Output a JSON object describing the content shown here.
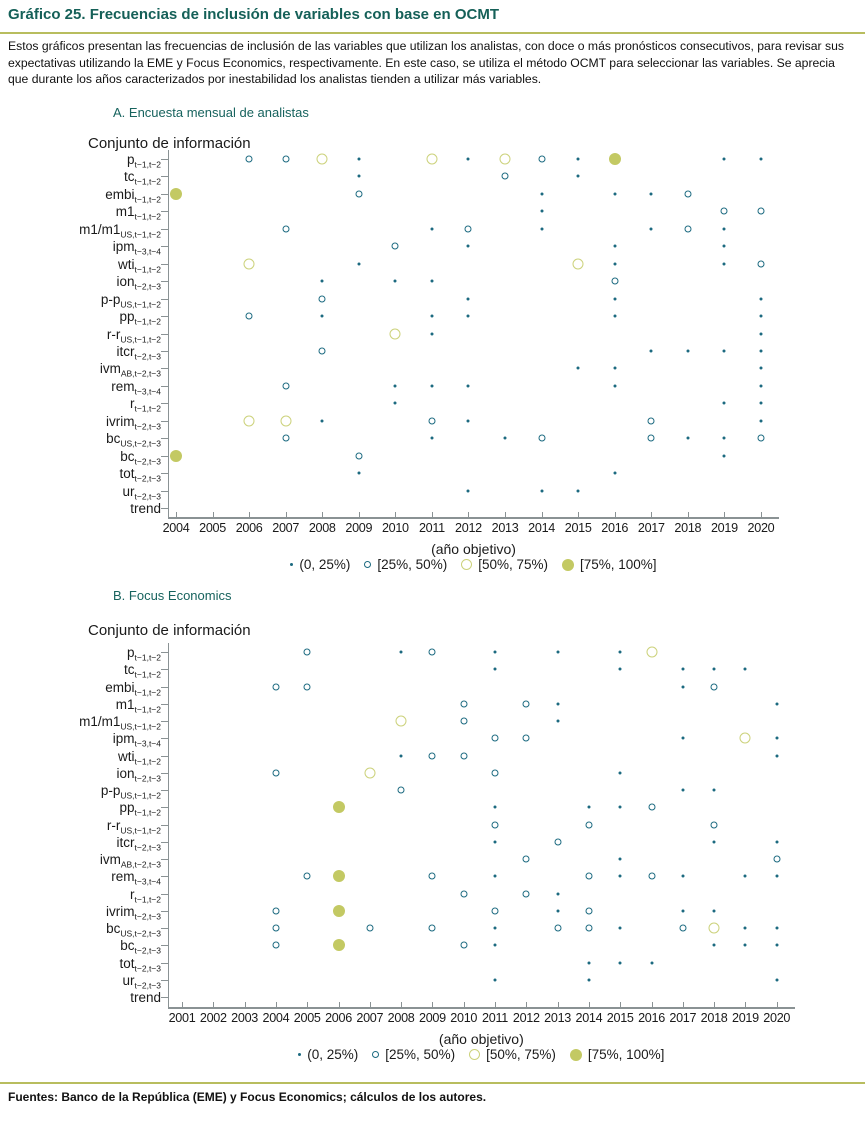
{
  "page": {
    "title": "Gráfico 25. Frecuencias de inclusión de variables con base en OCMT",
    "intro": "Estos gráficos presentan las frecuencias de inclusión de las variables que utilizan los analistas, con doce o más pronósticos consecutivos, para revisar sus expectativas utilizando la EME y Focus Economics, respectivamente. En este caso, se utiliza el método OCMT para seleccionar las variables. Se aprecia que durante los años caracterizados por inestabilidad los analistas tienden a utilizar más variables.",
    "footer": "Fuentes: Banco de la República (EME) y Focus Economics; cálculos de los autores."
  },
  "colors": {
    "title_teal": "#156058",
    "panel_teal": "#17635e",
    "olive_rule": "#b8bd5e",
    "marker_teal": "#1c6a80",
    "marker_olive_open": "#ccd27b",
    "marker_olive_fill": "#c3c963",
    "axis_gray": "#8a9294"
  },
  "legend": {
    "items": [
      {
        "bin": 1,
        "label": "(0, 25%)"
      },
      {
        "bin": 2,
        "label": "[25%, 50%)"
      },
      {
        "bin": 3,
        "label": "[50%, 75%)"
      },
      {
        "bin": 4,
        "label": "[75%, 100%]"
      }
    ]
  },
  "chart_data": [
    {
      "type": "scatter",
      "panel_title": "A. Encuesta mensual de analistas",
      "ylabel": "Conjunto de información",
      "xlabel": "(año objetivo)",
      "legend_position": "bottom-center",
      "grid": false,
      "bins": [
        "(0, 25%)",
        "[25%, 50%)",
        "[50%, 75%)",
        "[75%, 100%]"
      ],
      "years": [
        2004,
        2005,
        2006,
        2007,
        2008,
        2009,
        2010,
        2011,
        2012,
        2013,
        2014,
        2015,
        2016,
        2017,
        2018,
        2019,
        2020
      ],
      "variables": [
        {
          "base": "p",
          "sub": "t−1,t−2",
          "points": [
            [
              2006,
              2
            ],
            [
              2007,
              2
            ],
            [
              2008,
              3
            ],
            [
              2009,
              1
            ],
            [
              2011,
              3
            ],
            [
              2012,
              1
            ],
            [
              2013,
              3
            ],
            [
              2014,
              2
            ],
            [
              2015,
              1
            ],
            [
              2016,
              4
            ],
            [
              2019,
              1
            ],
            [
              2020,
              1
            ]
          ]
        },
        {
          "base": "tc",
          "sub": "t−1,t−2",
          "points": [
            [
              2009,
              1
            ],
            [
              2013,
              2
            ],
            [
              2015,
              1
            ]
          ]
        },
        {
          "base": "embi",
          "sub": "t−1,t−2",
          "points": [
            [
              2004,
              4
            ],
            [
              2009,
              2
            ],
            [
              2014,
              1
            ],
            [
              2016,
              1
            ],
            [
              2017,
              1
            ],
            [
              2018,
              2
            ]
          ]
        },
        {
          "base": "m1",
          "sub": "t−1,t−2",
          "points": [
            [
              2014,
              1
            ],
            [
              2019,
              2
            ],
            [
              2020,
              2
            ]
          ]
        },
        {
          "base": "m1/m1",
          "sub": "US,t−1,t−2",
          "points": [
            [
              2007,
              2
            ],
            [
              2011,
              1
            ],
            [
              2012,
              2
            ],
            [
              2014,
              1
            ],
            [
              2017,
              1
            ],
            [
              2018,
              2
            ],
            [
              2019,
              1
            ]
          ]
        },
        {
          "base": "ipm",
          "sub": "t−3,t−4",
          "points": [
            [
              2010,
              2
            ],
            [
              2012,
              1
            ],
            [
              2016,
              1
            ],
            [
              2019,
              1
            ]
          ]
        },
        {
          "base": "wti",
          "sub": "t−1,t−2",
          "points": [
            [
              2006,
              3
            ],
            [
              2009,
              1
            ],
            [
              2015,
              3
            ],
            [
              2016,
              1
            ],
            [
              2019,
              1
            ],
            [
              2020,
              2
            ]
          ]
        },
        {
          "base": "ion",
          "sub": "t−2,t−3",
          "points": [
            [
              2008,
              1
            ],
            [
              2010,
              1
            ],
            [
              2011,
              1
            ],
            [
              2016,
              2
            ]
          ]
        },
        {
          "base": "p-p",
          "sub": "US,t−1,t−2",
          "points": [
            [
              2008,
              2
            ],
            [
              2012,
              1
            ],
            [
              2016,
              1
            ],
            [
              2020,
              1
            ]
          ]
        },
        {
          "base": "pp",
          "sub": "t−1,t−2",
          "points": [
            [
              2006,
              2
            ],
            [
              2008,
              1
            ],
            [
              2011,
              1
            ],
            [
              2012,
              1
            ],
            [
              2016,
              1
            ],
            [
              2020,
              1
            ]
          ]
        },
        {
          "base": "r-r",
          "sub": "US,t−1,t−2",
          "points": [
            [
              2010,
              3
            ],
            [
              2011,
              1
            ],
            [
              2020,
              1
            ]
          ]
        },
        {
          "base": "itcr",
          "sub": "t−2,t−3",
          "points": [
            [
              2008,
              2
            ],
            [
              2017,
              1
            ],
            [
              2018,
              1
            ],
            [
              2019,
              1
            ],
            [
              2020,
              1
            ]
          ]
        },
        {
          "base": "ivm",
          "sub": "AB,t−2,t−3",
          "points": [
            [
              2015,
              1
            ],
            [
              2016,
              1
            ],
            [
              2020,
              1
            ]
          ]
        },
        {
          "base": "rem",
          "sub": "t−3,t−4",
          "points": [
            [
              2007,
              2
            ],
            [
              2010,
              1
            ],
            [
              2011,
              1
            ],
            [
              2012,
              1
            ],
            [
              2016,
              1
            ],
            [
              2020,
              1
            ]
          ]
        },
        {
          "base": "r",
          "sub": "t−1,t−2",
          "points": [
            [
              2010,
              1
            ],
            [
              2019,
              1
            ],
            [
              2020,
              1
            ]
          ]
        },
        {
          "base": "ivrim",
          "sub": "t−2,t−3",
          "points": [
            [
              2006,
              3
            ],
            [
              2007,
              3
            ],
            [
              2008,
              1
            ],
            [
              2011,
              2
            ],
            [
              2012,
              1
            ],
            [
              2017,
              2
            ],
            [
              2020,
              1
            ]
          ]
        },
        {
          "base": "bc",
          "sub": "US,t−2,t−3",
          "points": [
            [
              2007,
              2
            ],
            [
              2011,
              1
            ],
            [
              2013,
              1
            ],
            [
              2014,
              2
            ],
            [
              2017,
              2
            ],
            [
              2018,
              1
            ],
            [
              2019,
              1
            ],
            [
              2020,
              2
            ]
          ]
        },
        {
          "base": "bc",
          "sub": "t−2,t−3",
          "points": [
            [
              2004,
              4
            ],
            [
              2009,
              2
            ],
            [
              2019,
              1
            ]
          ]
        },
        {
          "base": "tot",
          "sub": "t−2,t−3",
          "points": [
            [
              2009,
              1
            ],
            [
              2016,
              1
            ]
          ]
        },
        {
          "base": "ur",
          "sub": "t−2,t−3",
          "points": [
            [
              2012,
              1
            ],
            [
              2014,
              1
            ],
            [
              2015,
              1
            ]
          ]
        },
        {
          "base": "trend",
          "sub": "",
          "points": []
        }
      ]
    },
    {
      "type": "scatter",
      "panel_title": "B. Focus Economics",
      "ylabel": "Conjunto de información",
      "xlabel": "(año objetivo)",
      "legend_position": "bottom-center",
      "grid": false,
      "bins": [
        "(0, 25%)",
        "[25%, 50%)",
        "[50%, 75%)",
        "[75%, 100%]"
      ],
      "years": [
        2001,
        2002,
        2003,
        2004,
        2005,
        2006,
        2007,
        2008,
        2009,
        2010,
        2011,
        2012,
        2013,
        2014,
        2015,
        2016,
        2017,
        2018,
        2019,
        2020
      ],
      "variables": [
        {
          "base": "p",
          "sub": "t−1,t−2",
          "points": [
            [
              2005,
              2
            ],
            [
              2008,
              1
            ],
            [
              2009,
              2
            ],
            [
              2011,
              1
            ],
            [
              2013,
              1
            ],
            [
              2015,
              1
            ],
            [
              2016,
              3
            ]
          ]
        },
        {
          "base": "tc",
          "sub": "t−1,t−2",
          "points": [
            [
              2011,
              1
            ],
            [
              2015,
              1
            ],
            [
              2017,
              1
            ],
            [
              2018,
              1
            ],
            [
              2019,
              1
            ]
          ]
        },
        {
          "base": "embi",
          "sub": "t−1,t−2",
          "points": [
            [
              2004,
              2
            ],
            [
              2005,
              2
            ],
            [
              2017,
              1
            ],
            [
              2018,
              2
            ]
          ]
        },
        {
          "base": "m1",
          "sub": "t−1,t−2",
          "points": [
            [
              2010,
              2
            ],
            [
              2012,
              2
            ],
            [
              2013,
              1
            ],
            [
              2020,
              1
            ]
          ]
        },
        {
          "base": "m1/m1",
          "sub": "US,t−1,t−2",
          "points": [
            [
              2008,
              3
            ],
            [
              2010,
              2
            ],
            [
              2013,
              1
            ]
          ]
        },
        {
          "base": "ipm",
          "sub": "t−3,t−4",
          "points": [
            [
              2011,
              2
            ],
            [
              2012,
              2
            ],
            [
              2017,
              1
            ],
            [
              2019,
              3
            ],
            [
              2020,
              1
            ]
          ]
        },
        {
          "base": "wti",
          "sub": "t−1,t−2",
          "points": [
            [
              2008,
              1
            ],
            [
              2009,
              2
            ],
            [
              2010,
              2
            ],
            [
              2020,
              1
            ]
          ]
        },
        {
          "base": "ion",
          "sub": "t−2,t−3",
          "points": [
            [
              2004,
              2
            ],
            [
              2007,
              3
            ],
            [
              2011,
              2
            ],
            [
              2015,
              1
            ]
          ]
        },
        {
          "base": "p-p",
          "sub": "US,t−1,t−2",
          "points": [
            [
              2008,
              2
            ],
            [
              2017,
              1
            ],
            [
              2018,
              1
            ]
          ]
        },
        {
          "base": "pp",
          "sub": "t−1,t−2",
          "points": [
            [
              2006,
              4
            ],
            [
              2011,
              1
            ],
            [
              2014,
              1
            ],
            [
              2015,
              1
            ],
            [
              2016,
              2
            ]
          ]
        },
        {
          "base": "r-r",
          "sub": "US,t−1,t−2",
          "points": [
            [
              2011,
              2
            ],
            [
              2014,
              2
            ],
            [
              2018,
              2
            ]
          ]
        },
        {
          "base": "itcr",
          "sub": "t−2,t−3",
          "points": [
            [
              2011,
              1
            ],
            [
              2013,
              2
            ],
            [
              2018,
              1
            ],
            [
              2020,
              1
            ]
          ]
        },
        {
          "base": "ivm",
          "sub": "AB,t−2,t−3",
          "points": [
            [
              2012,
              2
            ],
            [
              2015,
              1
            ],
            [
              2020,
              2
            ]
          ]
        },
        {
          "base": "rem",
          "sub": "t−3,t−4",
          "points": [
            [
              2005,
              2
            ],
            [
              2006,
              4
            ],
            [
              2009,
              2
            ],
            [
              2011,
              1
            ],
            [
              2014,
              2
            ],
            [
              2015,
              1
            ],
            [
              2016,
              2
            ],
            [
              2017,
              1
            ],
            [
              2019,
              1
            ],
            [
              2020,
              1
            ]
          ]
        },
        {
          "base": "r",
          "sub": "t−1,t−2",
          "points": [
            [
              2010,
              2
            ],
            [
              2012,
              2
            ],
            [
              2013,
              1
            ]
          ]
        },
        {
          "base": "ivrim",
          "sub": "t−2,t−3",
          "points": [
            [
              2004,
              2
            ],
            [
              2006,
              4
            ],
            [
              2011,
              2
            ],
            [
              2013,
              1
            ],
            [
              2014,
              2
            ],
            [
              2017,
              1
            ],
            [
              2018,
              1
            ]
          ]
        },
        {
          "base": "bc",
          "sub": "US,t−2,t−3",
          "points": [
            [
              2004,
              2
            ],
            [
              2007,
              2
            ],
            [
              2009,
              2
            ],
            [
              2011,
              1
            ],
            [
              2013,
              2
            ],
            [
              2014,
              2
            ],
            [
              2015,
              1
            ],
            [
              2017,
              2
            ],
            [
              2018,
              3
            ],
            [
              2019,
              1
            ],
            [
              2020,
              1
            ]
          ]
        },
        {
          "base": "bc",
          "sub": "t−2,t−3",
          "points": [
            [
              2004,
              2
            ],
            [
              2006,
              4
            ],
            [
              2010,
              2
            ],
            [
              2011,
              1
            ],
            [
              2018,
              1
            ],
            [
              2019,
              1
            ],
            [
              2020,
              1
            ]
          ]
        },
        {
          "base": "tot",
          "sub": "t−2,t−3",
          "points": [
            [
              2014,
              1
            ],
            [
              2015,
              1
            ],
            [
              2016,
              1
            ]
          ]
        },
        {
          "base": "ur",
          "sub": "t−2,t−3",
          "points": [
            [
              2011,
              1
            ],
            [
              2014,
              1
            ],
            [
              2020,
              1
            ]
          ]
        },
        {
          "base": "trend",
          "sub": "",
          "points": []
        }
      ]
    }
  ]
}
